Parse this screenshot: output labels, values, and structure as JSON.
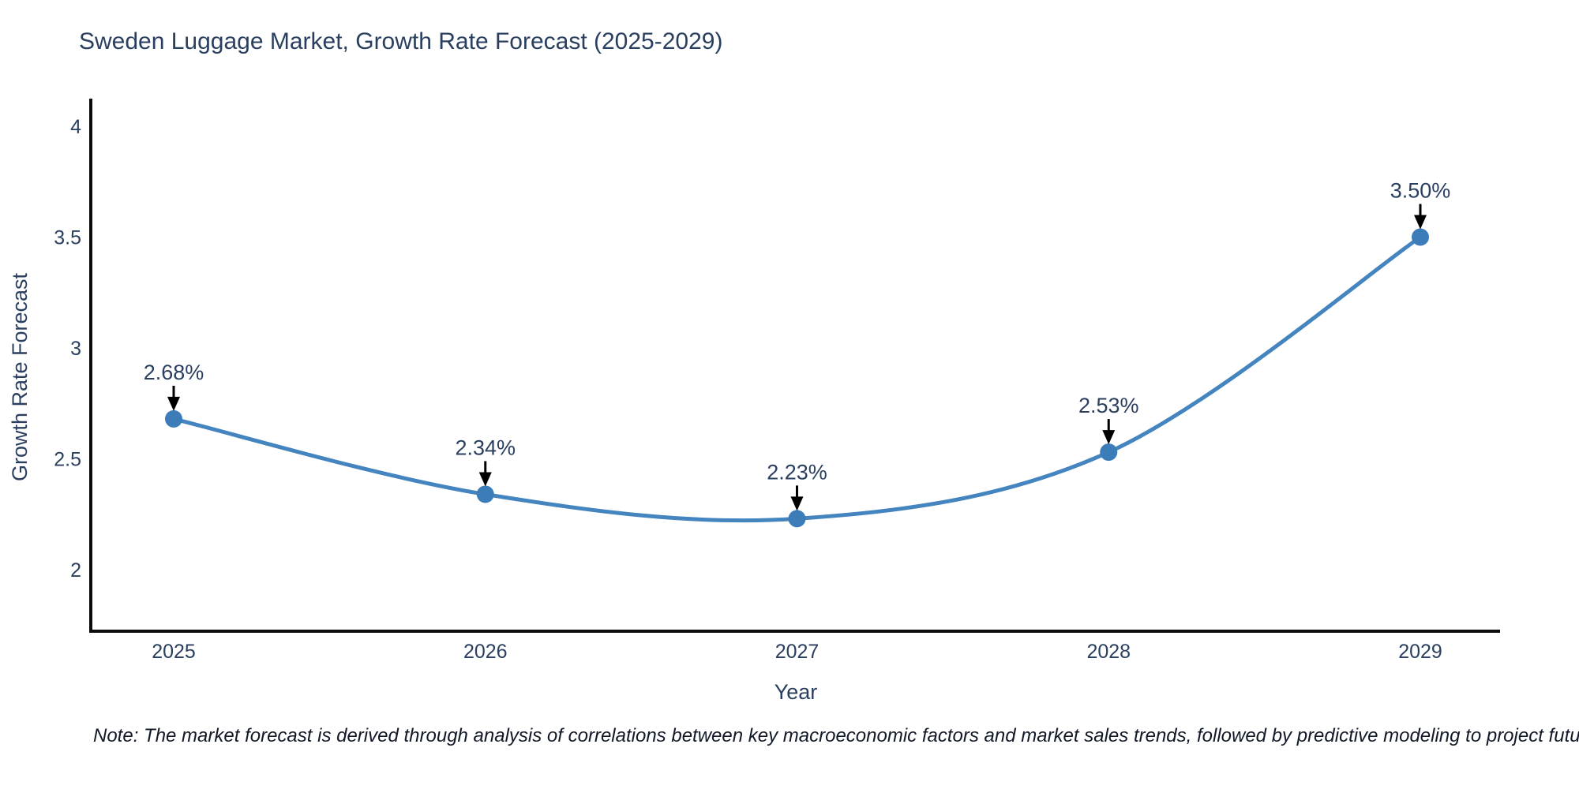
{
  "chart": {
    "title": "Sweden Luggage Market, Growth Rate Forecast (2025-2029)",
    "note": "Note: The market forecast is derived through analysis of correlations between key macroeconomic factors and market sales trends, followed by predictive modeling to project future sales",
    "colors": {
      "text": "#2a3f5f",
      "note_text": "#111827",
      "axis_line": "#0b0b0b",
      "line": "#4484bf",
      "marker": "#3c7cb8",
      "annotation_arrow": "#000000",
      "background": "#ffffff"
    }
  },
  "chart_data": {
    "type": "line",
    "title": "Sweden Luggage Market, Growth Rate Forecast (2025-2029)",
    "xlabel": "Year",
    "ylabel": "Growth Rate Forecast",
    "x": [
      2025,
      2026,
      2027,
      2028,
      2029
    ],
    "values": [
      2.68,
      2.34,
      2.23,
      2.53,
      3.5
    ],
    "point_labels": [
      "2.68%",
      "2.34%",
      "2.23%",
      "2.53%",
      "3.50%"
    ],
    "y_ticks": [
      2,
      2.5,
      3,
      3.5,
      4
    ],
    "ylim": [
      1.72,
      4.12
    ],
    "line_shape": "spline",
    "grid": false,
    "legend_position": "none",
    "annotations": "each point labeled with percent value and a downward black arrow"
  }
}
